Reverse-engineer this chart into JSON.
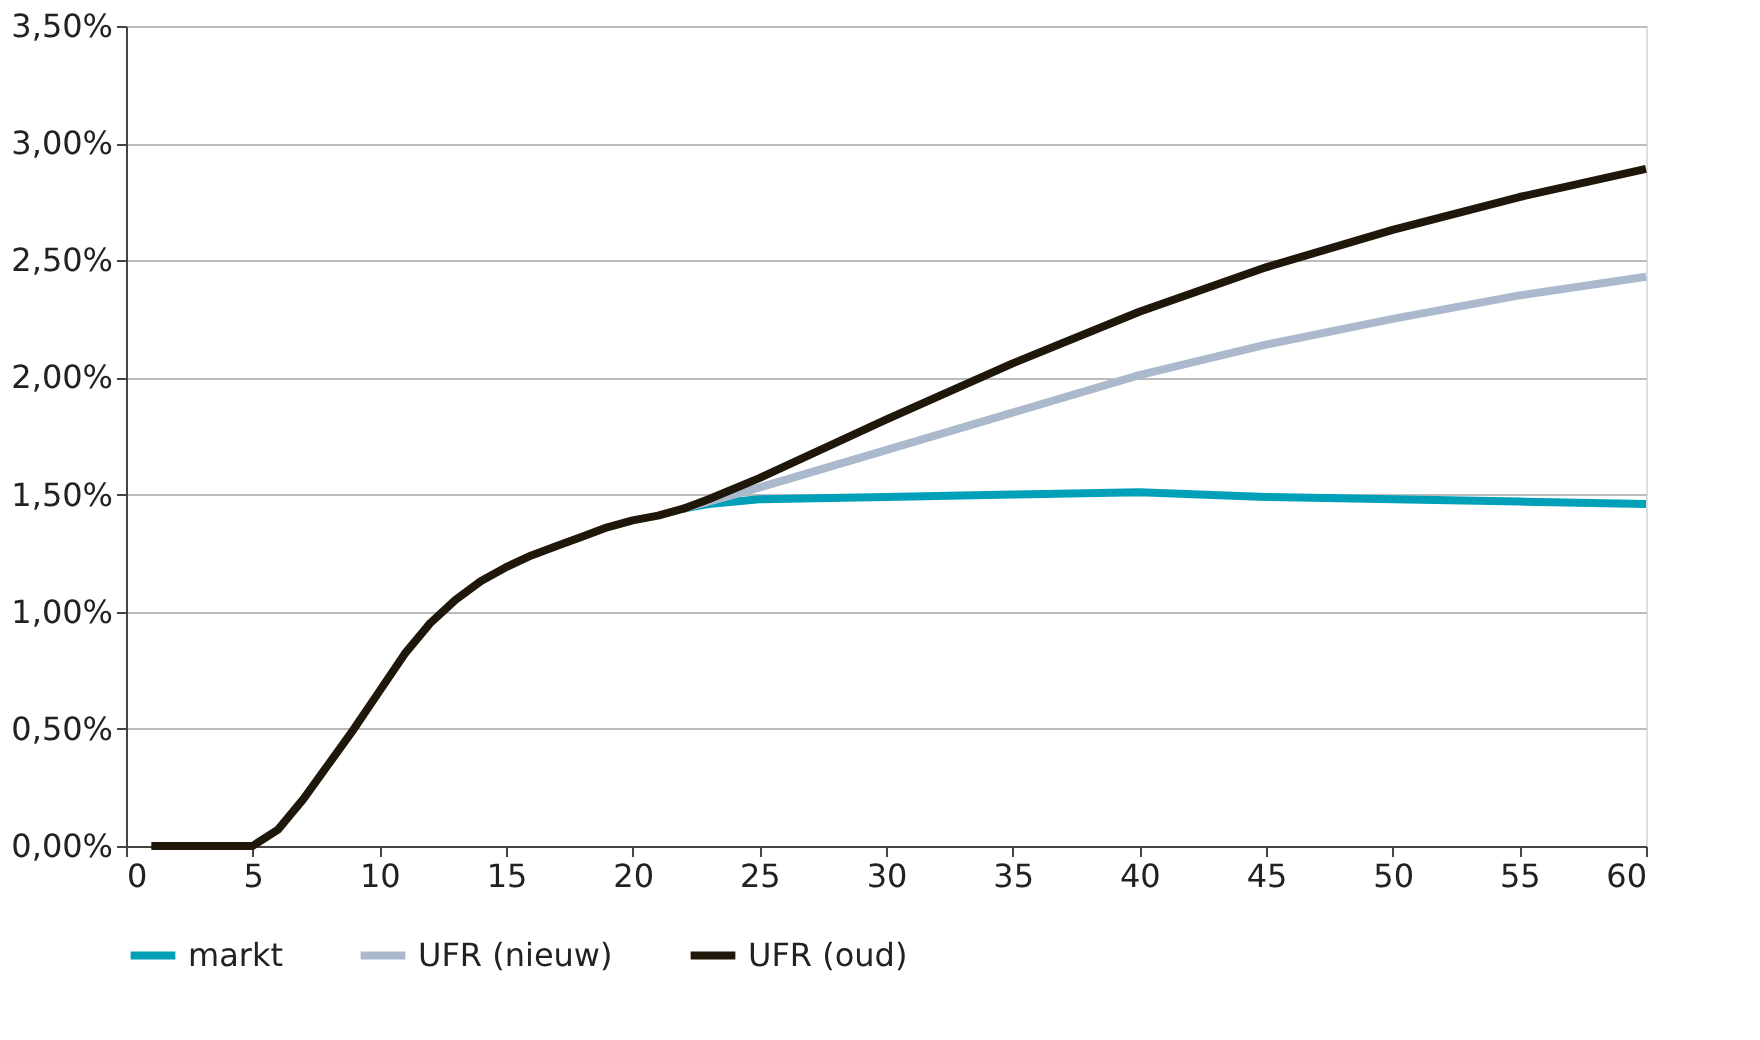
{
  "chart_data": {
    "type": "line",
    "xlim": [
      0,
      60
    ],
    "xticks": [
      0,
      5,
      10,
      15,
      20,
      25,
      30,
      35,
      40,
      45,
      50,
      55,
      60
    ],
    "ylim": [
      0,
      3.5
    ],
    "yticks": [
      {
        "value": 0,
        "label": "0,00%"
      },
      {
        "value": 0.5,
        "label": "0,50%"
      },
      {
        "value": 1,
        "label": "1,00%"
      },
      {
        "value": 1.5,
        "label": "1,50%"
      },
      {
        "value": 2,
        "label": "2,00%"
      },
      {
        "value": 2.5,
        "label": "2,50%"
      },
      {
        "value": 3,
        "label": "3,00%"
      },
      {
        "value": 3.5,
        "label": "3,50%"
      }
    ],
    "grid": "y",
    "legend": "bottom",
    "marker": "none",
    "line_style": "solid",
    "series": [
      {
        "name": "markt",
        "color": "#00a0b8",
        "x": [
          22,
          23,
          25,
          30,
          35,
          40,
          45,
          50,
          55,
          60
        ],
        "values": [
          1.44,
          1.46,
          1.48,
          1.49,
          1.5,
          1.51,
          1.49,
          1.48,
          1.47,
          1.46
        ]
      },
      {
        "name": "UFR (nieuw)",
        "color": "#aab9cc",
        "x": [
          22,
          23,
          25,
          30,
          35,
          40,
          45,
          50,
          55,
          60
        ],
        "values": [
          1.44,
          1.47,
          1.53,
          1.69,
          1.85,
          2.01,
          2.14,
          2.25,
          2.35,
          2.43
        ]
      },
      {
        "name": "UFR (oud)",
        "color": "#1e170a",
        "x": [
          1,
          2,
          3,
          4,
          5,
          6,
          7,
          8,
          9,
          10,
          11,
          12,
          13,
          14,
          15,
          16,
          17,
          18,
          19,
          20,
          21,
          22,
          23,
          25,
          30,
          35,
          40,
          45,
          50,
          55,
          60
        ],
        "values": [
          0,
          0,
          0,
          0,
          0,
          0.07,
          0.2,
          0.35,
          0.5,
          0.66,
          0.82,
          0.95,
          1.05,
          1.13,
          1.19,
          1.24,
          1.28,
          1.32,
          1.36,
          1.39,
          1.41,
          1.44,
          1.48,
          1.57,
          1.82,
          2.06,
          2.28,
          2.47,
          2.63,
          2.77,
          2.89
        ]
      }
    ]
  }
}
